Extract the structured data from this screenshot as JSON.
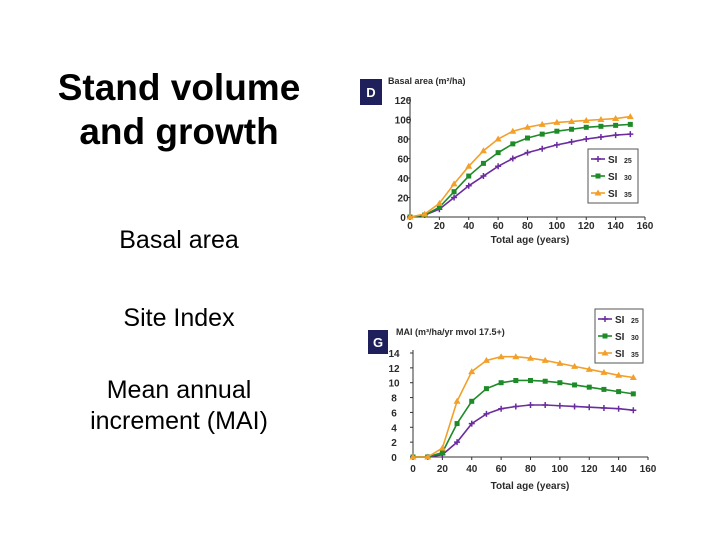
{
  "slide": {
    "title_line1": "Stand volume",
    "title_line2": "and growth",
    "bullets": [
      "Basal area",
      "Site Index",
      "Mean annual",
      "increment (MAI)"
    ]
  },
  "colors": {
    "si25": "#6a2c9e",
    "si30": "#1e8a28",
    "si35": "#f2a02a",
    "panel": "#1f1f5c",
    "axis": "#333333"
  },
  "chart_data": [
    {
      "type": "line",
      "panel_label": "D",
      "title": "Basal area (m²/ha)",
      "xlabel": "Total age (years)",
      "xlim": [
        0,
        160
      ],
      "ylim": [
        0,
        120
      ],
      "xticks": [
        0,
        20,
        40,
        60,
        80,
        100,
        120,
        140,
        160
      ],
      "yticks": [
        0,
        20,
        40,
        60,
        80,
        100,
        120
      ],
      "legend_position": "right",
      "x": [
        0,
        10,
        20,
        30,
        40,
        50,
        60,
        70,
        80,
        90,
        100,
        110,
        120,
        130,
        140,
        150
      ],
      "series": [
        {
          "name": "SI",
          "suffix": "25",
          "color": "si25",
          "marker": "plus",
          "values": [
            0,
            2,
            8,
            20,
            32,
            42,
            52,
            60,
            66,
            70,
            74,
            77,
            80,
            82,
            84,
            85
          ]
        },
        {
          "name": "SI",
          "suffix": "30",
          "color": "si30",
          "marker": "square",
          "values": [
            0,
            2,
            10,
            26,
            42,
            55,
            66,
            75,
            81,
            85,
            88,
            90,
            92,
            93,
            94,
            95
          ]
        },
        {
          "name": "SI",
          "suffix": "35",
          "color": "si35",
          "marker": "triangle",
          "values": [
            0,
            3,
            14,
            34,
            52,
            68,
            80,
            88,
            92,
            95,
            97,
            98,
            99,
            100,
            101,
            103
          ]
        }
      ]
    },
    {
      "type": "line",
      "panel_label": "G",
      "title": "MAI (m³/ha/yr mvol 17.5+)",
      "xlabel": "Total age (years)",
      "xlim": [
        0,
        160
      ],
      "ylim": [
        0,
        14
      ],
      "xticks": [
        0,
        20,
        40,
        60,
        80,
        100,
        120,
        140,
        160
      ],
      "yticks": [
        0,
        2,
        4,
        6,
        8,
        10,
        12,
        14
      ],
      "legend_position": "top-right",
      "x": [
        0,
        10,
        20,
        30,
        40,
        50,
        60,
        70,
        80,
        90,
        100,
        110,
        120,
        130,
        140,
        150
      ],
      "series": [
        {
          "name": "SI",
          "suffix": "25",
          "color": "si25",
          "marker": "plus",
          "values": [
            0,
            0,
            0.3,
            2.0,
            4.5,
            5.8,
            6.5,
            6.8,
            7.0,
            7.0,
            6.9,
            6.8,
            6.7,
            6.6,
            6.5,
            6.3
          ]
        },
        {
          "name": "SI",
          "suffix": "30",
          "color": "si30",
          "marker": "square",
          "values": [
            0,
            0,
            0.6,
            4.5,
            7.5,
            9.2,
            10.0,
            10.3,
            10.3,
            10.2,
            10.0,
            9.7,
            9.4,
            9.1,
            8.8,
            8.5
          ]
        },
        {
          "name": "SI",
          "suffix": "35",
          "color": "si35",
          "marker": "triangle",
          "values": [
            0,
            0,
            1.2,
            7.5,
            11.5,
            13.0,
            13.5,
            13.5,
            13.3,
            13.0,
            12.6,
            12.2,
            11.8,
            11.4,
            11.0,
            10.7
          ]
        }
      ]
    }
  ]
}
